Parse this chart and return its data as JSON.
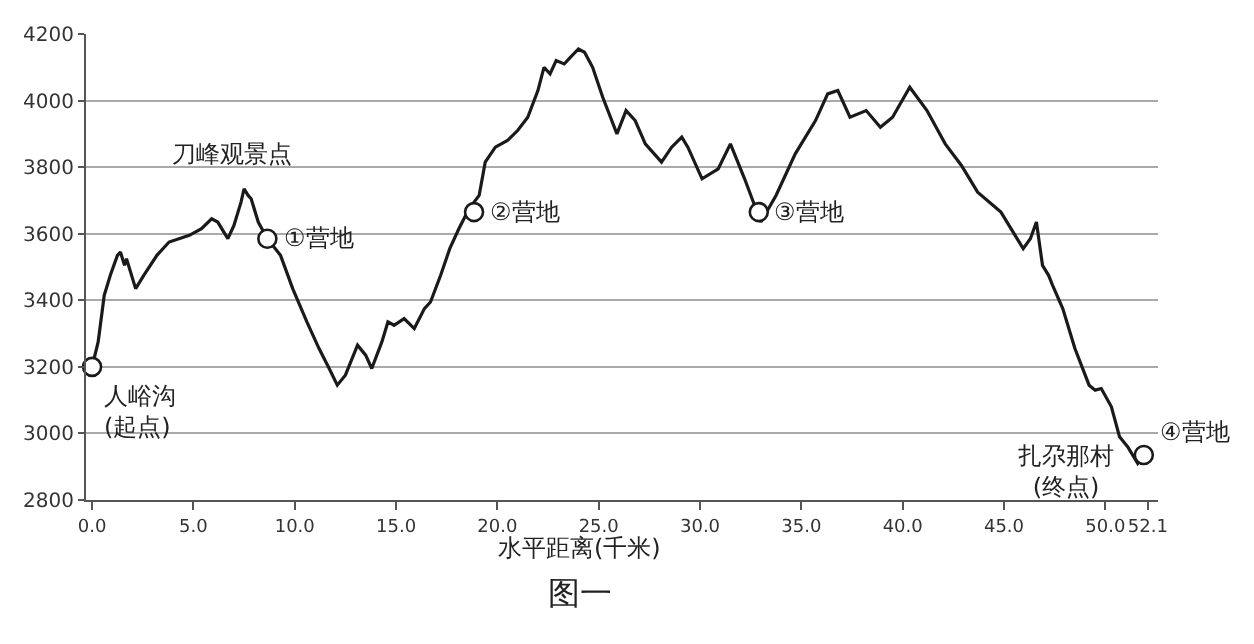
{
  "chart_data": {
    "type": "line",
    "xlabel": "水平距离(千米)",
    "series": [
      {
        "color": "#1a1a1a",
        "x": [
          0,
          0.3,
          0.6,
          0.9,
          1.25,
          1.4,
          1.6,
          1.7,
          2.15,
          2.55,
          3.2,
          3.8,
          4.8,
          5.4,
          5.9,
          6.2,
          6.7,
          7.0,
          7.35,
          7.5,
          7.7,
          7.85,
          8.2,
          8.65,
          9.3,
          9.9,
          10.6,
          11.2,
          11.7,
          12.1,
          12.5,
          13.1,
          13.5,
          13.8,
          14.3,
          14.6,
          14.9,
          15.4,
          15.9,
          16.4,
          16.7,
          17.2,
          17.65,
          18.1,
          18.6,
          19.1,
          19.4,
          19.9,
          20.5,
          21.0,
          21.5,
          22.0,
          22.3,
          22.6,
          22.9,
          23.3,
          23.6,
          24.0,
          24.3,
          24.7,
          25.2,
          25.9,
          26.35,
          26.8,
          27.3,
          28.1,
          28.6,
          29.1,
          29.4,
          30.1,
          30.9,
          31.5,
          32.2,
          33.0,
          33.75,
          34.7,
          35.7,
          36.3,
          36.8,
          37.4,
          38.2,
          38.9,
          39.5,
          40.35,
          41.2,
          42.1,
          42.9,
          43.7,
          44.85,
          45.95,
          46.3,
          46.6,
          46.9,
          47.2,
          47.4,
          47.9,
          48.5,
          49.2,
          49.5,
          49.8,
          50.3,
          50.7,
          51.1,
          51.6,
          52.0
        ],
        "values": [
          3200,
          3275,
          3415,
          3475,
          3535,
          3545,
          3505,
          3525,
          3435,
          3475,
          3535,
          3575,
          3595,
          3615,
          3645,
          3635,
          3585,
          3625,
          3695,
          3735,
          3715,
          3705,
          3635,
          3585,
          3535,
          3435,
          3335,
          3255,
          3195,
          3145,
          3175,
          3265,
          3235,
          3195,
          3275,
          3335,
          3325,
          3345,
          3315,
          3375,
          3395,
          3475,
          3555,
          3615,
          3675,
          3715,
          3815,
          3860,
          3880,
          3910,
          3950,
          4030,
          4100,
          4080,
          4120,
          4110,
          4130,
          4155,
          4145,
          4100,
          4010,
          3900,
          3970,
          3940,
          3870,
          3815,
          3860,
          3890,
          3860,
          3765,
          3795,
          3870,
          3765,
          3635,
          3715,
          3840,
          3940,
          4020,
          4030,
          3950,
          3970,
          3920,
          3950,
          4040,
          3970,
          3870,
          3805,
          3725,
          3665,
          3555,
          3585,
          3635,
          3505,
          3475,
          3445,
          3375,
          3255,
          3145,
          3130,
          3135,
          3080,
          2990,
          2960,
          2910,
          2940
        ]
      },
      {
        "type": "scatter",
        "marker": "circle",
        "color": "#1a1a1a",
        "x": [
          0,
          8.65,
          18.85,
          32.9,
          51.9
        ],
        "values": [
          3200,
          3585,
          3665,
          3665,
          2935
        ]
      }
    ],
    "xlim": [
      -0.3,
      52.6
    ],
    "xticks": [
      {
        "value": 0,
        "label": "0.0"
      },
      {
        "value": 5,
        "label": "5.0"
      },
      {
        "value": 10,
        "label": "10.0"
      },
      {
        "value": 15,
        "label": "15.0"
      },
      {
        "value": 20,
        "label": "20.0"
      },
      {
        "value": 25,
        "label": "25.0"
      },
      {
        "value": 30,
        "label": "30.0"
      },
      {
        "value": 35,
        "label": "35.0"
      },
      {
        "value": 40,
        "label": "40.0"
      },
      {
        "value": 45,
        "label": "45.0"
      },
      {
        "value": 50,
        "label": "50.0"
      },
      {
        "value": 52.1,
        "label": "52.1"
      }
    ],
    "ylim": [
      2800,
      4200
    ],
    "yticks": [
      2800,
      3000,
      3200,
      3400,
      3600,
      3800,
      4000,
      4200
    ],
    "grid": "y",
    "annotations": [
      {
        "text": "人峪沟\n(起点)",
        "x": 0,
        "y": 3200
      },
      {
        "text": "刀峰观景点",
        "x": 7.5,
        "y": 3735
      },
      {
        "text": "①营地",
        "x": 8.65,
        "y": 3585
      },
      {
        "text": "②营地",
        "x": 18.85,
        "y": 3665
      },
      {
        "text": "③营地",
        "x": 32.9,
        "y": 3665
      },
      {
        "text": "扎尕那村\n(终点)",
        "x": 51.6,
        "y": 2910
      },
      {
        "text": "④营地",
        "x": 51.9,
        "y": 2935
      },
      "图一"
    ]
  }
}
